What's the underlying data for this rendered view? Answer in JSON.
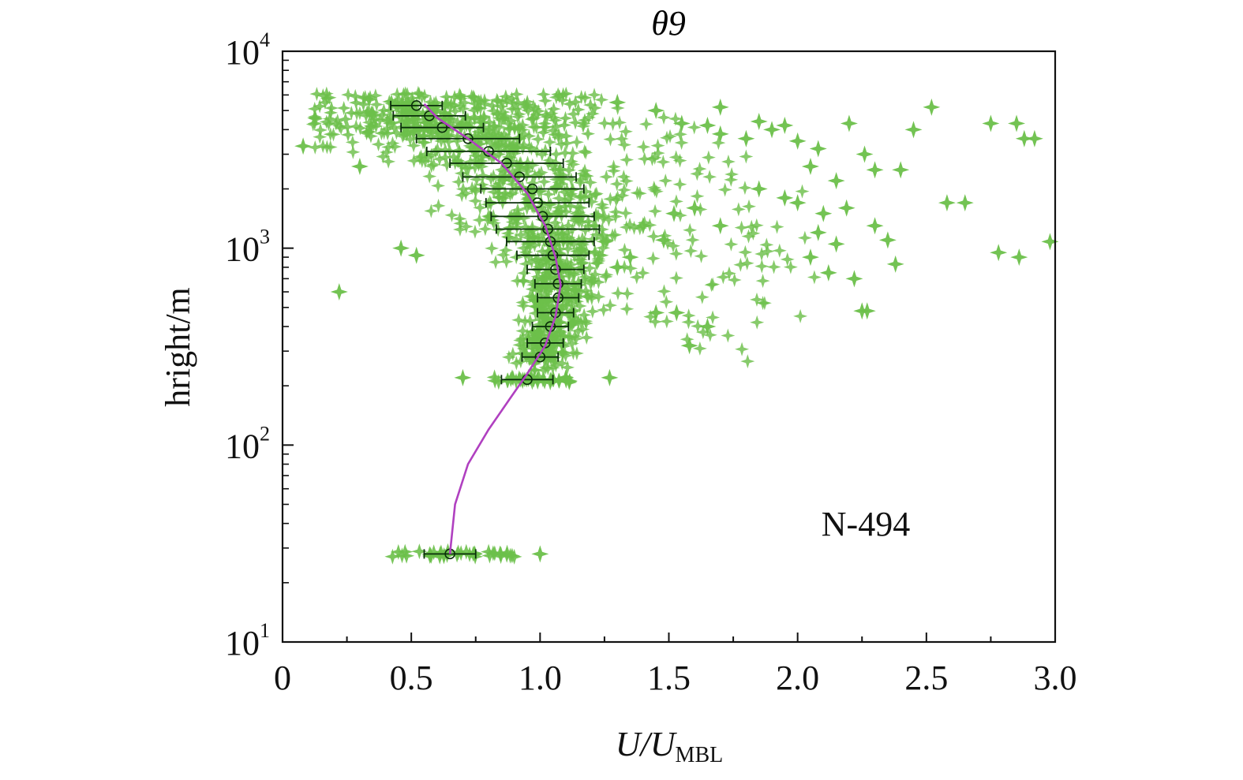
{
  "chart_data": {
    "type": "scatter",
    "title": "θ9",
    "xlabel": {
      "main": "U/U",
      "subscript": "MBL"
    },
    "ylabel": "hright/m",
    "xlim": [
      0,
      3.0
    ],
    "ylim": [
      10,
      10000
    ],
    "yscale": "log",
    "grid": false,
    "annotation": "N-494",
    "xticks": [
      "0",
      "0.5",
      "1.0",
      "1.5",
      "2.0",
      "2.5",
      "3.0"
    ],
    "xtick_values": [
      0,
      0.5,
      1.0,
      1.5,
      2.0,
      2.5,
      3.0
    ],
    "yticks": [
      {
        "value": 10,
        "base": "10",
        "exp": "1"
      },
      {
        "value": 100,
        "base": "10",
        "exp": "2"
      },
      {
        "value": 1000,
        "base": "10",
        "exp": "3"
      },
      {
        "value": 10000,
        "base": "10",
        "exp": "4"
      }
    ],
    "colors": {
      "scatter": "#6cc04a",
      "errorbar": "#0a2e0a",
      "fit": "#b040c0",
      "axis": "#111111"
    },
    "fit_curve": {
      "x": [
        0.65,
        0.67,
        0.72,
        0.8,
        0.88,
        0.95,
        1.02,
        1.06,
        1.08,
        1.06,
        1.02,
        0.95,
        0.85,
        0.72,
        0.6,
        0.55
      ],
      "y": [
        28,
        50,
        80,
        120,
        170,
        230,
        320,
        450,
        650,
        900,
        1300,
        1900,
        2700,
        3600,
        4600,
        5400
      ]
    },
    "mean_profile": {
      "heights": [
        28,
        215,
        280,
        330,
        400,
        470,
        560,
        660,
        780,
        920,
        1080,
        1250,
        1450,
        1700,
        2000,
        2300,
        2700,
        3100,
        3600,
        4100,
        4700,
        5300
      ],
      "means": [
        0.65,
        0.95,
        1.0,
        1.02,
        1.04,
        1.06,
        1.07,
        1.07,
        1.06,
        1.05,
        1.04,
        1.03,
        1.01,
        0.99,
        0.97,
        0.92,
        0.87,
        0.8,
        0.72,
        0.62,
        0.57,
        0.52
      ],
      "sd": [
        0.1,
        0.1,
        0.07,
        0.07,
        0.07,
        0.07,
        0.08,
        0.09,
        0.11,
        0.14,
        0.17,
        0.2,
        0.2,
        0.2,
        0.2,
        0.22,
        0.22,
        0.24,
        0.2,
        0.16,
        0.14,
        0.1
      ]
    },
    "dense_bands": [
      {
        "y": 28,
        "xmin": 0.4,
        "xmax": 0.9
      },
      {
        "y": 215,
        "xmin": 0.82,
        "xmax": 1.12
      }
    ],
    "outliers": [
      [
        0.22,
        600
      ],
      [
        0.52,
        920
      ],
      [
        0.46,
        1000
      ],
      [
        0.08,
        3300
      ],
      [
        0.3,
        2600
      ],
      [
        0.7,
        220
      ],
      [
        1.0,
        28
      ],
      [
        1.27,
        220
      ],
      [
        1.45,
        470
      ],
      [
        1.53,
        470
      ],
      [
        1.58,
        320
      ],
      [
        1.65,
        400
      ],
      [
        2.2,
        4300
      ],
      [
        2.52,
        5200
      ],
      [
        2.45,
        4000
      ],
      [
        2.75,
        4300
      ],
      [
        2.85,
        4300
      ],
      [
        2.88,
        3600
      ],
      [
        2.92,
        3600
      ],
      [
        2.98,
        1080
      ],
      [
        2.78,
        950
      ],
      [
        2.86,
        900
      ],
      [
        2.4,
        2500
      ],
      [
        2.3,
        1300
      ],
      [
        2.35,
        1100
      ],
      [
        2.38,
        830
      ],
      [
        2.22,
        700
      ],
      [
        2.25,
        480
      ],
      [
        2.27,
        480
      ],
      [
        2.05,
        900
      ],
      [
        2.08,
        1200
      ],
      [
        2.15,
        1050
      ],
      [
        2.12,
        750
      ],
      [
        1.85,
        2000
      ],
      [
        1.95,
        1800
      ],
      [
        2.0,
        1700
      ],
      [
        2.1,
        1500
      ],
      [
        2.19,
        1600
      ],
      [
        2.26,
        3000
      ],
      [
        2.3,
        2500
      ],
      [
        2.58,
        1700
      ],
      [
        2.65,
        1700
      ],
      [
        1.3,
        5500
      ],
      [
        1.45,
        5000
      ],
      [
        1.55,
        4300
      ],
      [
        1.65,
        4200
      ],
      [
        1.7,
        3800
      ],
      [
        1.8,
        3600
      ],
      [
        1.9,
        4000
      ],
      [
        2.0,
        3500
      ],
      [
        2.08,
        3200
      ],
      [
        1.7,
        5200
      ],
      [
        1.85,
        4400
      ],
      [
        1.95,
        4200
      ],
      [
        2.05,
        2600
      ],
      [
        2.15,
        2200
      ],
      [
        1.4,
        1300
      ],
      [
        1.35,
        900
      ],
      [
        1.3,
        800
      ],
      [
        1.48,
        1100
      ],
      [
        1.52,
        1500
      ],
      [
        1.6,
        1600
      ],
      [
        1.7,
        1300
      ]
    ]
  }
}
